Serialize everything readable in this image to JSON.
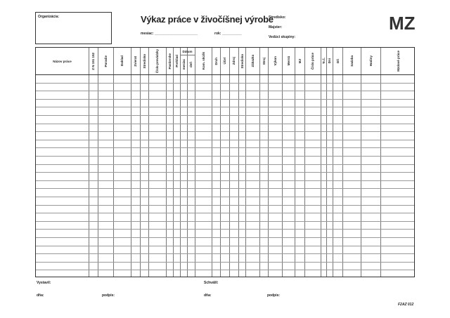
{
  "header": {
    "organization_label": "Organizácia:",
    "title": "Výkaz práce v živočíšnej výrobe",
    "month_label": "mesiac:",
    "year_label": "rok:",
    "center_label": "Stredisko:",
    "master_label": "Majster:",
    "group_leader_label": "Vedúci skupiny:",
    "badge": "MZ"
  },
  "columns": [
    "Názov práce",
    "Z N 151 152",
    "Poradie",
    "Doklad",
    "Zvierat",
    "Stredisko",
    "Číslo prevádzky",
    "Pastierske",
    "Prehliad",
    "mesiac",
    "deň",
    "Kom. skúšk",
    "Druh",
    "Účel",
    "Zdroj",
    "Stredisko",
    "Zákazka",
    "Stroj",
    "Výkon",
    "Merná",
    "MJ",
    "Číslo práce",
    "Tr.č.",
    "Dni",
    "Dň",
    "Sadzba",
    "Hodiny",
    "Mzdové práce"
  ],
  "date_group_label": "Dátum",
  "footer": {
    "issued_label": "Vystavil:",
    "approved_label": "Schválil:",
    "date_label": "dňa:",
    "signature_label": "podpis:",
    "form_code": "F2AZ 012"
  }
}
